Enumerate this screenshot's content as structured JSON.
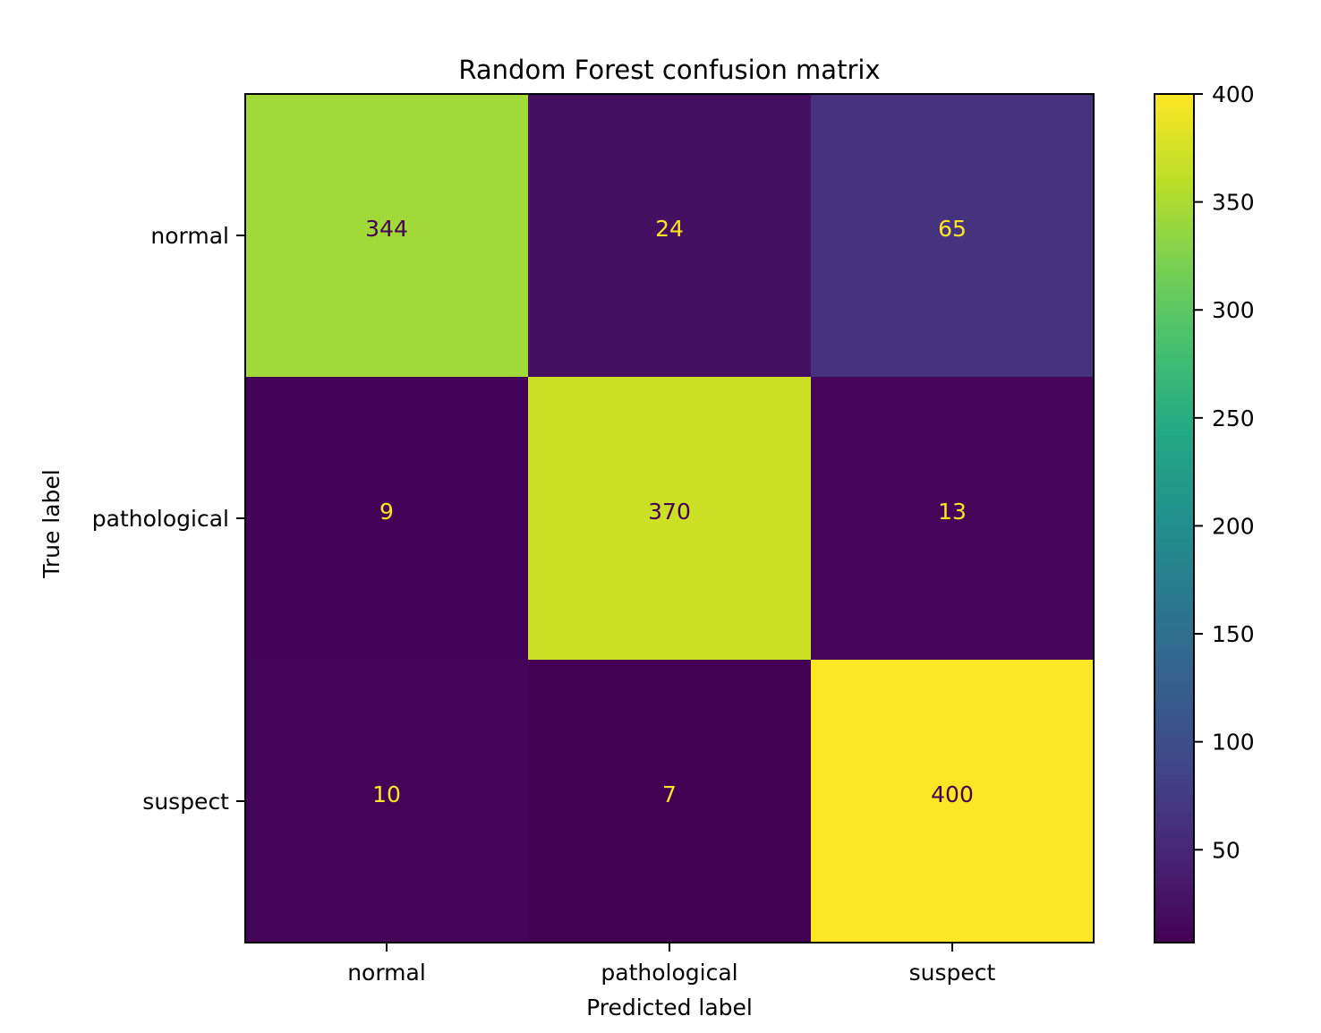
{
  "chart_data": {
    "type": "heatmap",
    "title": "Random Forest confusion matrix",
    "xlabel": "Predicted label",
    "ylabel": "True label",
    "x_categories": [
      "normal",
      "pathological",
      "suspect"
    ],
    "y_categories": [
      "normal",
      "pathological",
      "suspect"
    ],
    "matrix": [
      [
        344,
        24,
        65
      ],
      [
        9,
        370,
        13
      ],
      [
        10,
        7,
        400
      ]
    ],
    "colormap": "viridis",
    "color_range": [
      7,
      400
    ],
    "colorbar": {
      "ticks": [
        50,
        100,
        150,
        200,
        250,
        300,
        350,
        400
      ],
      "tick_labels": [
        "50",
        "100",
        "150",
        "200",
        "250",
        "300",
        "350",
        "400"
      ]
    },
    "grid": false
  }
}
